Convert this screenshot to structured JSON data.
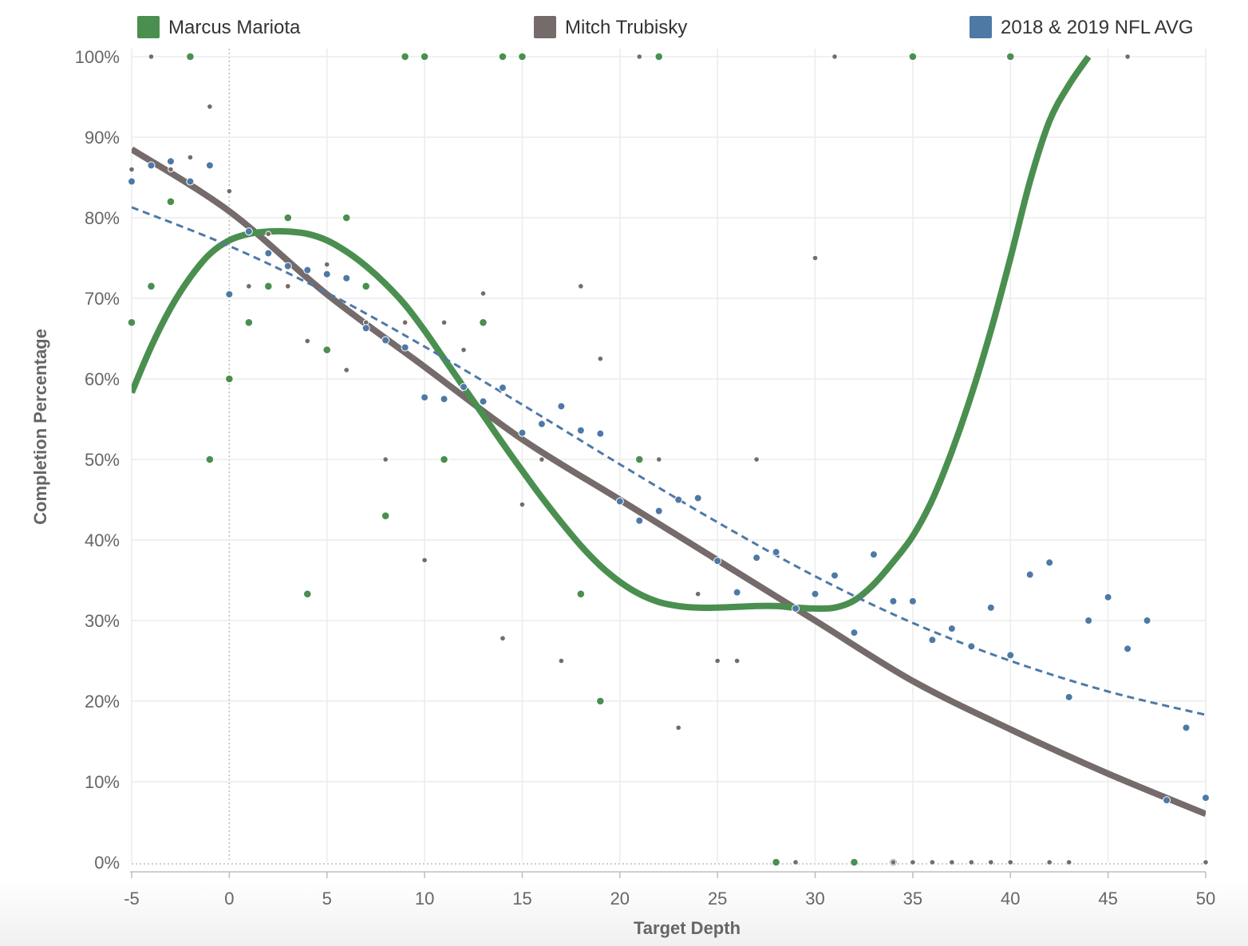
{
  "chart_data": {
    "type": "scatter",
    "xlabel": "Target Depth",
    "ylabel": "Completion Percentage",
    "xlim": [
      -5,
      50
    ],
    "ylim": [
      0,
      100
    ],
    "x_ticks": [
      "-5",
      "0",
      "5",
      "10",
      "15",
      "20",
      "25",
      "30",
      "35",
      "40",
      "45",
      "50"
    ],
    "y_ticks": [
      "0%",
      "10%",
      "20%",
      "30%",
      "40%",
      "50%",
      "60%",
      "70%",
      "80%",
      "90%",
      "100%"
    ],
    "legend_position": "top",
    "grid": true,
    "series": [
      {
        "name": "Marcus Mariota",
        "color": "#4a8f4f",
        "points": [
          [
            -5,
            67
          ],
          [
            -4,
            71.5
          ],
          [
            -3,
            82
          ],
          [
            -2,
            100
          ],
          [
            -1,
            50
          ],
          [
            0,
            60
          ],
          [
            1,
            67
          ],
          [
            2,
            71.5
          ],
          [
            3,
            80
          ],
          [
            4,
            33.3
          ],
          [
            5,
            63.6
          ],
          [
            6,
            80
          ],
          [
            7,
            71.5
          ],
          [
            8,
            43
          ],
          [
            9,
            100
          ],
          [
            10,
            100
          ],
          [
            11,
            50
          ],
          [
            13,
            67
          ],
          [
            14,
            100
          ],
          [
            15,
            100
          ],
          [
            18,
            33.3
          ],
          [
            19,
            20
          ],
          [
            21,
            50
          ],
          [
            22,
            100
          ],
          [
            28,
            0
          ],
          [
            32,
            0
          ],
          [
            34,
            0
          ],
          [
            35,
            100
          ],
          [
            40,
            100
          ]
        ],
        "trend": {
          "style": "solid",
          "points": [
            [
              -5,
              58.3
            ],
            [
              -4,
              64
            ],
            [
              -3,
              68.8
            ],
            [
              -2,
              72.6
            ],
            [
              -1,
              75.5
            ],
            [
              0,
              77.2
            ],
            [
              1,
              78
            ],
            [
              2,
              78.3
            ],
            [
              3,
              78.3
            ],
            [
              4,
              78
            ],
            [
              5,
              77.2
            ],
            [
              6,
              75.8
            ],
            [
              7,
              74
            ],
            [
              8,
              71.8
            ],
            [
              9,
              69.2
            ],
            [
              10,
              66
            ],
            [
              11,
              62.5
            ],
            [
              12,
              59
            ],
            [
              13,
              55.5
            ],
            [
              14,
              52
            ],
            [
              15,
              48.6
            ],
            [
              16,
              45.3
            ],
            [
              17,
              42.2
            ],
            [
              18,
              39.3
            ],
            [
              19,
              36.8
            ],
            [
              20,
              34.8
            ],
            [
              21,
              33.3
            ],
            [
              22,
              32.3
            ],
            [
              23,
              31.8
            ],
            [
              24,
              31.6
            ],
            [
              25,
              31.6
            ],
            [
              26,
              31.7
            ],
            [
              27,
              31.8
            ],
            [
              28,
              31.8
            ],
            [
              29,
              31.6
            ],
            [
              30,
              31.5
            ],
            [
              31,
              31.6
            ],
            [
              32,
              32.5
            ],
            [
              33,
              34.5
            ],
            [
              34,
              37.3
            ],
            [
              35,
              40.5
            ],
            [
              36,
              45
            ],
            [
              37,
              51
            ],
            [
              38,
              58
            ],
            [
              39,
              66
            ],
            [
              40,
              75
            ],
            [
              41,
              84.5
            ],
            [
              42,
              92
            ],
            [
              43,
              96.5
            ],
            [
              44,
              100
            ]
          ]
        }
      },
      {
        "name": "Mitch Trubisky",
        "color": "#746b6a",
        "points": [
          [
            -5,
            86
          ],
          [
            -4,
            100
          ],
          [
            -3,
            86
          ],
          [
            -2,
            87.5
          ],
          [
            -1,
            93.8
          ],
          [
            0,
            83.3
          ],
          [
            1,
            71.5
          ],
          [
            2,
            78
          ],
          [
            3,
            71.5
          ],
          [
            4,
            64.7
          ],
          [
            5,
            74.2
          ],
          [
            6,
            61.1
          ],
          [
            7,
            67
          ],
          [
            8,
            50
          ],
          [
            9,
            67
          ],
          [
            10,
            37.5
          ],
          [
            11,
            67
          ],
          [
            12,
            63.6
          ],
          [
            13,
            70.6
          ],
          [
            14,
            27.8
          ],
          [
            15,
            44.4
          ],
          [
            16,
            50
          ],
          [
            17,
            25
          ],
          [
            18,
            71.5
          ],
          [
            19,
            62.5
          ],
          [
            21,
            100
          ],
          [
            22,
            50
          ],
          [
            23,
            16.7
          ],
          [
            24,
            33.3
          ],
          [
            25,
            25
          ],
          [
            26,
            25
          ],
          [
            27,
            50
          ],
          [
            29,
            0
          ],
          [
            30,
            75
          ],
          [
            31,
            100
          ],
          [
            34,
            0
          ],
          [
            35,
            0
          ],
          [
            36,
            0
          ],
          [
            37,
            0
          ],
          [
            38,
            0
          ],
          [
            39,
            0
          ],
          [
            40,
            0
          ],
          [
            42,
            0
          ],
          [
            43,
            0
          ],
          [
            46,
            100
          ],
          [
            50,
            0
          ]
        ],
        "trend": {
          "style": "solid",
          "points": [
            [
              -5,
              88.5
            ],
            [
              0,
              80.8
            ],
            [
              5,
              70.5
            ],
            [
              10,
              61.5
            ],
            [
              15,
              52.5
            ],
            [
              20,
              45
            ],
            [
              25,
              37.5
            ],
            [
              30,
              30
            ],
            [
              35,
              22.5
            ],
            [
              40,
              16.5
            ],
            [
              45,
              11
            ],
            [
              50,
              6
            ]
          ]
        }
      },
      {
        "name": "2018 & 2019 NFL AVG",
        "color": "#4e79a7",
        "points": [
          [
            -5,
            84.5
          ],
          [
            -4,
            86.5
          ],
          [
            -3,
            87
          ],
          [
            -2,
            84.5
          ],
          [
            -1,
            86.5
          ],
          [
            0,
            70.5
          ],
          [
            1,
            78.3
          ],
          [
            2,
            75.6
          ],
          [
            3,
            74
          ],
          [
            4,
            73.5
          ],
          [
            5,
            73
          ],
          [
            6,
            72.5
          ],
          [
            7,
            66.3
          ],
          [
            8,
            64.8
          ],
          [
            9,
            63.9
          ],
          [
            10,
            57.7
          ],
          [
            11,
            57.5
          ],
          [
            12,
            59
          ],
          [
            13,
            57.2
          ],
          [
            14,
            58.9
          ],
          [
            15,
            53.3
          ],
          [
            16,
            54.4
          ],
          [
            17,
            56.6
          ],
          [
            18,
            53.6
          ],
          [
            19,
            53.2
          ],
          [
            20,
            44.8
          ],
          [
            21,
            42.4
          ],
          [
            22,
            43.6
          ],
          [
            23,
            45
          ],
          [
            24,
            45.2
          ],
          [
            25,
            37.4
          ],
          [
            26,
            33.5
          ],
          [
            27,
            37.8
          ],
          [
            28,
            38.5
          ],
          [
            29,
            31.5
          ],
          [
            30,
            33.3
          ],
          [
            31,
            35.6
          ],
          [
            32,
            28.5
          ],
          [
            33,
            38.2
          ],
          [
            34,
            32.4
          ],
          [
            35,
            32.4
          ],
          [
            36,
            27.6
          ],
          [
            37,
            29
          ],
          [
            38,
            26.8
          ],
          [
            39,
            31.6
          ],
          [
            40,
            25.7
          ],
          [
            41,
            35.7
          ],
          [
            42,
            37.2
          ],
          [
            43,
            20.5
          ],
          [
            44,
            30
          ],
          [
            45,
            32.9
          ],
          [
            46,
            26.5
          ],
          [
            47,
            30
          ],
          [
            48,
            7.7
          ],
          [
            49,
            16.7
          ],
          [
            50,
            8
          ]
        ],
        "trend": {
          "style": "dashed",
          "points": [
            [
              -5,
              81.3
            ],
            [
              0,
              76.5
            ],
            [
              5,
              70.7
            ],
            [
              10,
              64
            ],
            [
              15,
              56.8
            ],
            [
              20,
              49.4
            ],
            [
              25,
              42.2
            ],
            [
              30,
              35.5
            ],
            [
              35,
              29.7
            ],
            [
              40,
              25
            ],
            [
              45,
              21.2
            ],
            [
              50,
              18.3
            ]
          ]
        }
      }
    ]
  }
}
